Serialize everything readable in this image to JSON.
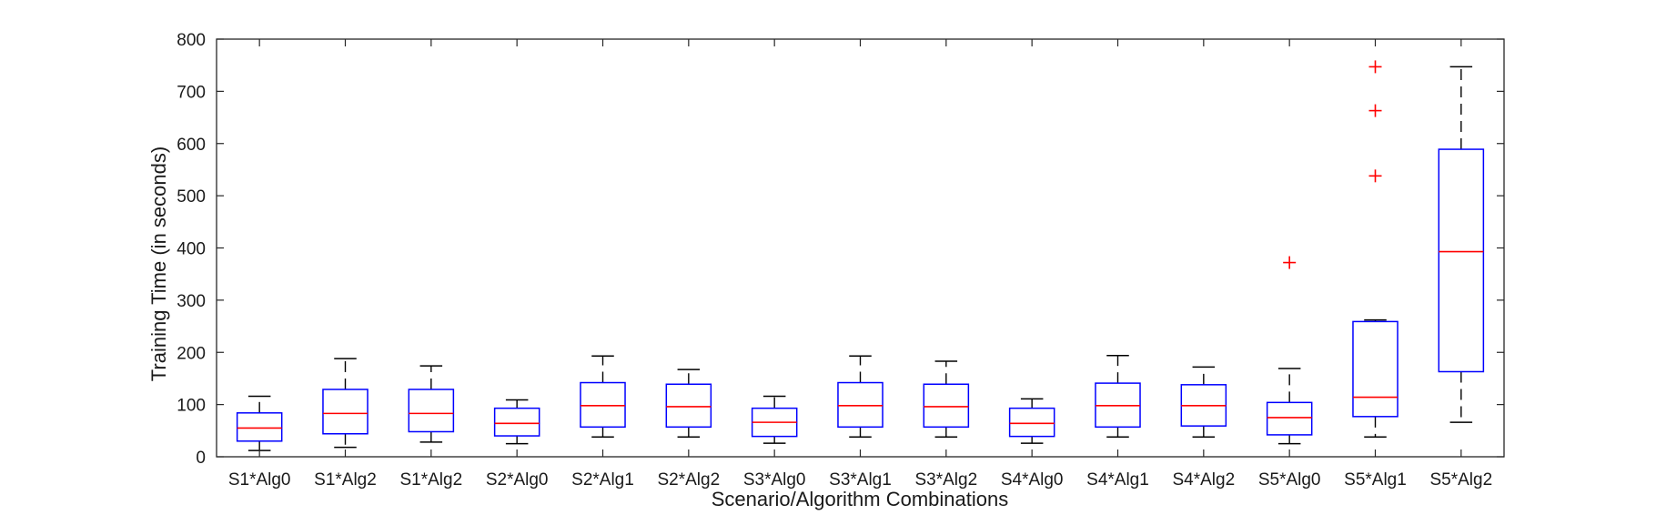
{
  "chart_data": {
    "type": "boxplot",
    "title": "",
    "xlabel": "Scenario/Algorithm Combinations",
    "ylabel": "Training Time (in seconds)",
    "ylim": [
      0,
      800
    ],
    "yticks": [
      0,
      100,
      200,
      300,
      400,
      500,
      600,
      700,
      800
    ],
    "grid": false,
    "legend": "none",
    "colors": {
      "box": "#0000ff",
      "median": "#ff0000",
      "whisker": "#000000",
      "outlier": "#ff0000",
      "axis": "#262626"
    },
    "categories": [
      "S1*Alg0",
      "S1*Alg2",
      "S1*Alg2",
      "S2*Alg0",
      "S2*Alg1",
      "S2*Alg2",
      "S3*Alg0",
      "S3*Alg1",
      "S3*Alg2",
      "S4*Alg0",
      "S4*Alg1",
      "S4*Alg2",
      "S5*Alg0",
      "S5*Alg1",
      "S5*Alg2"
    ],
    "boxes": [
      {
        "whisker_low": 12,
        "q1": 30,
        "median": 55,
        "q3": 84,
        "whisker_high": 116,
        "outliers": []
      },
      {
        "whisker_low": 18,
        "q1": 44,
        "median": 83,
        "q3": 129,
        "whisker_high": 188,
        "outliers": []
      },
      {
        "whisker_low": 28,
        "q1": 48,
        "median": 83,
        "q3": 129,
        "whisker_high": 174,
        "outliers": []
      },
      {
        "whisker_low": 25,
        "q1": 40,
        "median": 64,
        "q3": 93,
        "whisker_high": 109,
        "outliers": []
      },
      {
        "whisker_low": 38,
        "q1": 57,
        "median": 98,
        "q3": 142,
        "whisker_high": 193,
        "outliers": []
      },
      {
        "whisker_low": 38,
        "q1": 57,
        "median": 96,
        "q3": 139,
        "whisker_high": 167,
        "outliers": []
      },
      {
        "whisker_low": 26,
        "q1": 39,
        "median": 66,
        "q3": 93,
        "whisker_high": 116,
        "outliers": []
      },
      {
        "whisker_low": 38,
        "q1": 57,
        "median": 98,
        "q3": 142,
        "whisker_high": 193,
        "outliers": []
      },
      {
        "whisker_low": 38,
        "q1": 57,
        "median": 96,
        "q3": 139,
        "whisker_high": 183,
        "outliers": []
      },
      {
        "whisker_low": 26,
        "q1": 39,
        "median": 64,
        "q3": 93,
        "whisker_high": 111,
        "outliers": []
      },
      {
        "whisker_low": 38,
        "q1": 57,
        "median": 98,
        "q3": 141,
        "whisker_high": 194,
        "outliers": []
      },
      {
        "whisker_low": 38,
        "q1": 59,
        "median": 98,
        "q3": 138,
        "whisker_high": 172,
        "outliers": []
      },
      {
        "whisker_low": 25,
        "q1": 42,
        "median": 75,
        "q3": 104,
        "whisker_high": 169,
        "outliers": [
          372
        ]
      },
      {
        "whisker_low": 38,
        "q1": 77,
        "median": 114,
        "q3": 259,
        "whisker_high": 262,
        "outliers": [
          538,
          663,
          747
        ]
      },
      {
        "whisker_low": 66,
        "q1": 163,
        "median": 393,
        "q3": 589,
        "whisker_high": 747,
        "outliers": []
      }
    ]
  }
}
